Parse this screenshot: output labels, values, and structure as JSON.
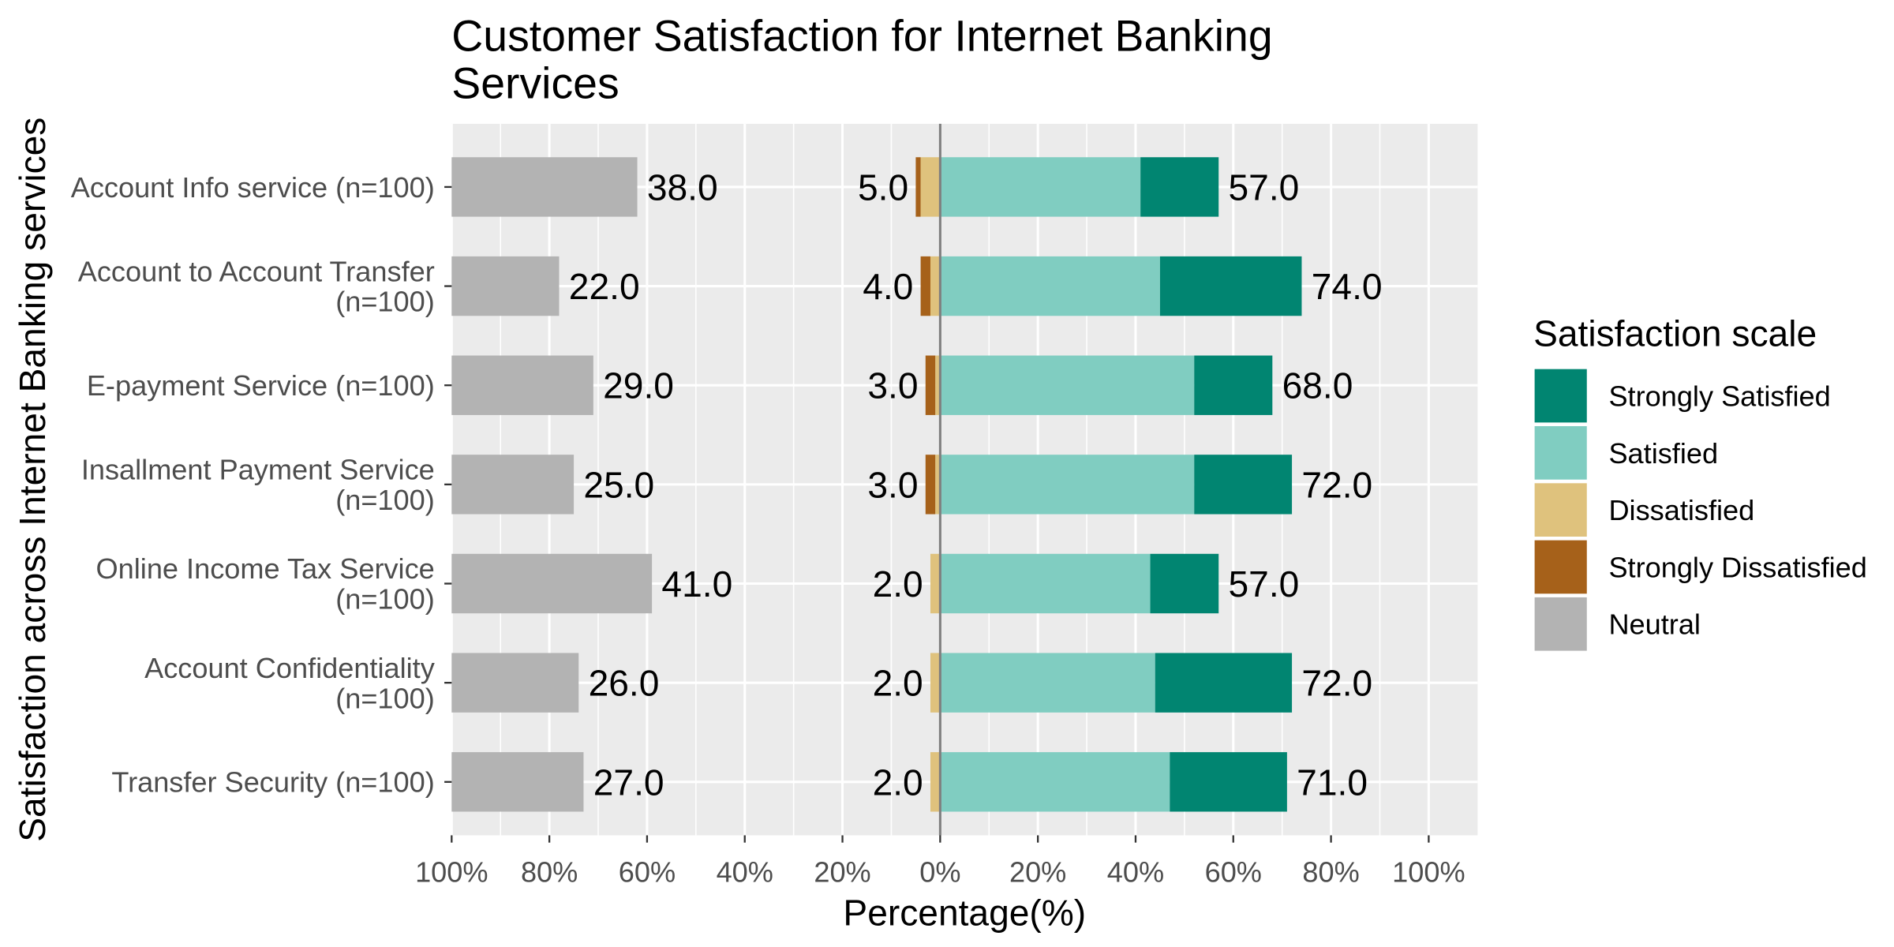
{
  "chart_data": {
    "type": "bar",
    "title_lines": [
      "Customer Satisfaction for Internet Banking",
      "Services"
    ],
    "xlabel": "Percentage(%)",
    "ylabel": "Satisfaction across Internet Banking services",
    "categories": [
      [
        "Account Info service (n=100)"
      ],
      [
        "Account to Account Transfer",
        "(n=100)"
      ],
      [
        "E-payment Service (n=100)"
      ],
      [
        "Insallment Payment Service",
        "(n=100)"
      ],
      [
        "Online Income Tax Service",
        "(n=100)"
      ],
      [
        "Account Confidentiality",
        "(n=100)"
      ],
      [
        "Transfer Security (n=100)"
      ]
    ],
    "series": [
      {
        "name": "Strongly Satisfied",
        "color": "#018571",
        "values": [
          16,
          29,
          16,
          20,
          14,
          28,
          24
        ]
      },
      {
        "name": "Satisfied",
        "color": "#80CDC1",
        "values": [
          41,
          45,
          52,
          52,
          43,
          44,
          47
        ]
      },
      {
        "name": "Dissatisfied",
        "color": "#DFC27D",
        "values": [
          4,
          2,
          1,
          1,
          2,
          2,
          2
        ]
      },
      {
        "name": "Strongly Dissatisfied",
        "color": "#A6611A",
        "values": [
          1,
          2,
          2,
          2,
          0,
          0,
          0
        ]
      },
      {
        "name": "Neutral",
        "color": "#B3B3B3",
        "values": [
          38,
          22,
          29,
          25,
          41,
          26,
          27
        ]
      }
    ],
    "data_labels": {
      "neutral": [
        "38.0",
        "22.0",
        "29.0",
        "25.0",
        "41.0",
        "26.0",
        "27.0"
      ],
      "negative": [
        "5.0",
        "4.0",
        "3.0",
        "3.0",
        "2.0",
        "2.0",
        "2.0"
      ],
      "positive": [
        "57.0",
        "74.0",
        "68.0",
        "72.0",
        "57.0",
        "72.0",
        "71.0"
      ]
    },
    "x_ticks": [
      -100,
      -80,
      -60,
      -40,
      -20,
      0,
      20,
      40,
      60,
      80,
      100
    ],
    "x_tick_labels": [
      "100%",
      "80%",
      "60%",
      "40%",
      "20%",
      "0%",
      "20%",
      "40%",
      "60%",
      "80%",
      "100%"
    ],
    "xlim": [
      -100,
      110
    ],
    "grid": true,
    "legend": {
      "title": "Satisfaction scale",
      "position": "right"
    }
  },
  "colors": {
    "panel_background": "#EBEBEB",
    "grid": "#FFFFFF",
    "zero_line": "#7F7F7F",
    "axis_tick": "#333333"
  }
}
